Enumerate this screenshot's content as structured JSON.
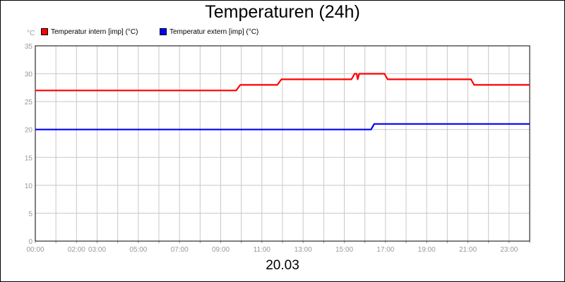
{
  "chart_data": {
    "type": "line",
    "title": "Temperaturen (24h)",
    "xlabel": "20.03",
    "ylabel": "°C",
    "ylim": [
      0,
      35
    ],
    "xlim": [
      0,
      24
    ],
    "yticks": [
      0,
      5,
      10,
      15,
      20,
      25,
      30,
      35
    ],
    "xticks": [
      {
        "h": 0,
        "label": "00:00"
      },
      {
        "h": 2,
        "label": "02:00"
      },
      {
        "h": 3,
        "label": "03:00"
      },
      {
        "h": 5,
        "label": "05:00"
      },
      {
        "h": 7,
        "label": "07:00"
      },
      {
        "h": 9,
        "label": "09:00"
      },
      {
        "h": 11,
        "label": "11:00"
      },
      {
        "h": 13,
        "label": "13:00"
      },
      {
        "h": 15,
        "label": "15:00"
      },
      {
        "h": 17,
        "label": "17:00"
      },
      {
        "h": 19,
        "label": "19:00"
      },
      {
        "h": 21,
        "label": "21:00"
      },
      {
        "h": 23,
        "label": "23:00"
      }
    ],
    "grid": true,
    "legend_position": "top-left",
    "series": [
      {
        "name": "Temperatur intern [imp] (°C)",
        "color": "#ff0000",
        "points": [
          [
            0,
            27
          ],
          [
            9.75,
            27
          ],
          [
            9.95,
            28
          ],
          [
            11.75,
            28
          ],
          [
            11.95,
            29
          ],
          [
            15.35,
            29
          ],
          [
            15.5,
            30
          ],
          [
            15.6,
            30
          ],
          [
            15.65,
            29
          ],
          [
            15.72,
            30
          ],
          [
            16.95,
            30
          ],
          [
            17.1,
            29
          ],
          [
            21.15,
            29
          ],
          [
            21.3,
            28
          ],
          [
            24,
            28
          ]
        ]
      },
      {
        "name": "Temperatur extern [imp] (°C)",
        "color": "#0000ff",
        "points": [
          [
            0,
            20
          ],
          [
            16.3,
            20
          ],
          [
            16.45,
            21
          ],
          [
            24,
            21
          ]
        ]
      }
    ]
  }
}
